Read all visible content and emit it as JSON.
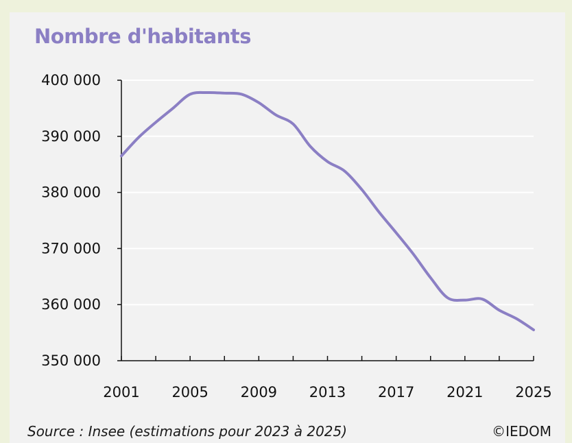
{
  "chart_data": {
    "type": "line",
    "title": "Nombre d'habitants",
    "xlabel": "",
    "ylabel": "",
    "xlim": [
      2001,
      2025
    ],
    "ylim": [
      350000,
      400000
    ],
    "x_ticks": [
      2001,
      2005,
      2009,
      2013,
      2017,
      2021,
      2025
    ],
    "x_tick_labels": [
      "2001",
      "2005",
      "2009",
      "2013",
      "2017",
      "2021",
      "2025"
    ],
    "y_ticks": [
      350000,
      360000,
      370000,
      380000,
      390000,
      400000
    ],
    "y_tick_labels": [
      "350 000",
      "360 000",
      "370 000",
      "380 000",
      "390 000",
      "400 000"
    ],
    "grid": "horizontal",
    "line_color": "#8b7fc4",
    "series": [
      {
        "x": [
          2001,
          2002,
          2003,
          2004,
          2005,
          2006,
          2007,
          2008,
          2009,
          2010,
          2011,
          2012,
          2013,
          2014,
          2015,
          2016,
          2017,
          2018,
          2019,
          2020,
          2021,
          2022,
          2023,
          2024,
          2025
        ],
        "values": [
          386500,
          389800,
          392500,
          395000,
          397500,
          397800,
          397700,
          397500,
          396000,
          393800,
          392200,
          388200,
          385500,
          383800,
          380500,
          376500,
          372800,
          369000,
          364800,
          361200,
          360800,
          361000,
          359000,
          357500,
          355500
        ]
      }
    ]
  },
  "footer": {
    "source": "Source : Insee (estimations pour 2023 à 2025)",
    "copyright": "©IEDOM"
  },
  "colors": {
    "title": "#8b7fc4",
    "background": "#f2f2f2",
    "page": "#eef2dc"
  }
}
